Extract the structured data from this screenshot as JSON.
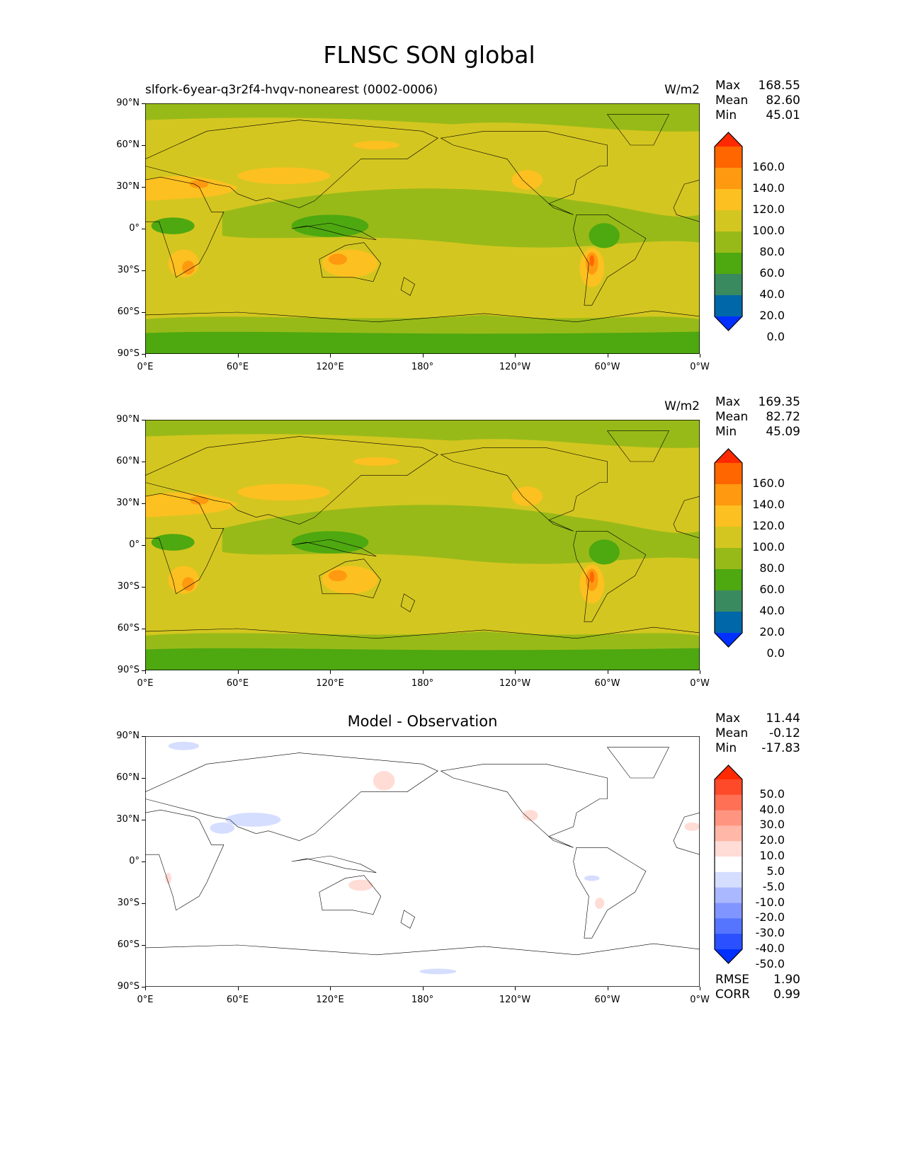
{
  "title": "FLNSC SON global",
  "chart_data": [
    {
      "type": "heatmap",
      "panel": "model",
      "title": "slfork-6year-q3r2f4-hvqv-nonearest (0002-0006)",
      "units": "W/m2",
      "stats": {
        "max_label": "Max",
        "max": "168.55",
        "mean_label": "Mean",
        "mean": "82.60",
        "min_label": "Min",
        "min": "45.01"
      },
      "colorbar": {
        "levels": [
          "160.0",
          "140.0",
          "120.0",
          "100.0",
          "80.0",
          "60.0",
          "40.0",
          "20.0",
          "0.0"
        ],
        "colors": [
          "#ff2a00",
          "#ff6600",
          "#ff9910",
          "#fcc020",
          "#d4c620",
          "#98ba18",
          "#4ea810",
          "#3a8a60",
          "#0068a8",
          "#0030ff"
        ]
      }
    },
    {
      "type": "heatmap",
      "panel": "observation",
      "title": "",
      "units": "W/m2",
      "stats": {
        "max_label": "Max",
        "max": "169.35",
        "mean_label": "Mean",
        "mean": "82.72",
        "min_label": "Min",
        "min": "45.09"
      },
      "colorbar": {
        "levels": [
          "160.0",
          "140.0",
          "120.0",
          "100.0",
          "80.0",
          "60.0",
          "40.0",
          "20.0",
          "0.0"
        ],
        "colors": [
          "#ff2a00",
          "#ff6600",
          "#ff9910",
          "#fcc020",
          "#d4c620",
          "#98ba18",
          "#4ea810",
          "#3a8a60",
          "#0068a8",
          "#0030ff"
        ]
      }
    },
    {
      "type": "heatmap",
      "panel": "difference",
      "title": "Model - Observation",
      "units": "",
      "stats": {
        "max_label": "Max",
        "max": "11.44",
        "mean_label": "Mean",
        "mean": "-0.12",
        "min_label": "Min",
        "min": "-17.83"
      },
      "colorbar": {
        "levels": [
          "50.0",
          "40.0",
          "30.0",
          "20.0",
          "10.0",
          "5.0",
          "-5.0",
          "-10.0",
          "-20.0",
          "-30.0",
          "-40.0",
          "-50.0"
        ],
        "colors": [
          "#ff2a00",
          "#ff4a2a",
          "#ff7055",
          "#ff9580",
          "#ffb8a8",
          "#ffdcd5",
          "#ffffff",
          "#d5deff",
          "#aab8ff",
          "#8095ff",
          "#5575ff",
          "#2a50ff",
          "#0030ff"
        ]
      },
      "extra": {
        "rmse_label": "RMSE",
        "rmse": "1.90",
        "corr_label": "CORR",
        "corr": "0.99"
      }
    }
  ],
  "axes": {
    "lat_ticks": [
      "90°N",
      "60°N",
      "30°N",
      "0°",
      "30°S",
      "60°S",
      "90°S"
    ],
    "lon_ticks": [
      "0°E",
      "60°E",
      "120°E",
      "180°",
      "120°W",
      "60°W",
      "0°W"
    ]
  }
}
